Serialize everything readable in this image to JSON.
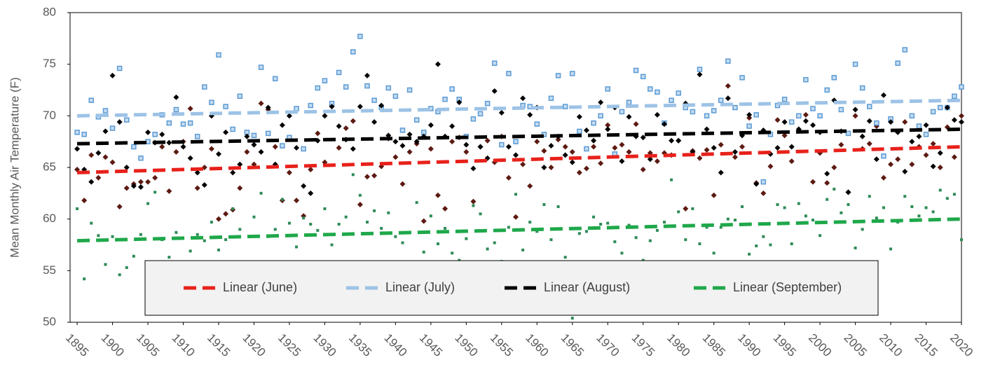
{
  "chart_data": {
    "type": "scatter",
    "y_label": "Mean Monthly Air Temperature (F)",
    "xlim": [
      1894,
      2020
    ],
    "ylim": [
      50,
      80
    ],
    "xticks": [
      1895,
      1900,
      1905,
      1910,
      1915,
      1920,
      1925,
      1930,
      1935,
      1940,
      1945,
      1950,
      1955,
      1960,
      1965,
      1970,
      1975,
      1980,
      1985,
      1990,
      1995,
      2000,
      2005,
      2010,
      2015,
      2020
    ],
    "yticks": [
      50,
      55,
      60,
      65,
      70,
      75,
      80
    ],
    "grid": false,
    "legend": "bottom",
    "x": [
      1895,
      1896,
      1897,
      1898,
      1899,
      1900,
      1901,
      1902,
      1903,
      1904,
      1905,
      1906,
      1907,
      1908,
      1909,
      1910,
      1911,
      1912,
      1913,
      1914,
      1915,
      1916,
      1917,
      1918,
      1919,
      1920,
      1921,
      1922,
      1923,
      1924,
      1925,
      1926,
      1927,
      1928,
      1929,
      1930,
      1931,
      1932,
      1933,
      1934,
      1935,
      1936,
      1937,
      1938,
      1939,
      1940,
      1941,
      1942,
      1943,
      1944,
      1945,
      1946,
      1947,
      1948,
      1949,
      1950,
      1951,
      1952,
      1953,
      1954,
      1955,
      1956,
      1957,
      1958,
      1959,
      1960,
      1961,
      1962,
      1963,
      1964,
      1965,
      1966,
      1967,
      1968,
      1969,
      1970,
      1971,
      1972,
      1973,
      1974,
      1975,
      1976,
      1977,
      1978,
      1979,
      1980,
      1981,
      1982,
      1983,
      1984,
      1985,
      1986,
      1987,
      1988,
      1989,
      1990,
      1991,
      1992,
      1993,
      1994,
      1995,
      1996,
      1997,
      1998,
      1999,
      2000,
      2001,
      2002,
      2003,
      2004,
      2005,
      2006,
      2007,
      2008,
      2009,
      2010,
      2011,
      2012,
      2013,
      2014,
      2015,
      2016,
      2017,
      2018,
      2019,
      2020
    ],
    "series": [
      {
        "color": "#5c1a12",
        "marker": "diamond",
        "values": [
          64.8,
          61.8,
          66.2,
          64.0,
          66.0,
          65.5,
          61.2,
          63.0,
          63.4,
          63.6,
          63.6,
          64.0,
          67.0,
          62.7,
          66.5,
          67.5,
          70.7,
          63.0,
          65.0,
          66.8,
          60.0,
          60.5,
          60.9,
          63.0,
          66.5,
          65.3,
          71.2,
          70.6,
          67.0,
          61.8,
          64.5,
          61.8,
          60.3,
          64.8,
          68.3,
          65.5,
          71.0,
          66.9,
          68.8,
          69.5,
          61.4,
          64.1,
          64.2,
          65.1,
          67.8,
          66.0,
          63.4,
          66.5,
          67.3,
          59.8,
          66.8,
          62.3,
          61.0,
          67.5,
          67.9,
          66.5,
          61.7,
          67.0,
          67.6,
          65.5,
          68.0,
          64.0,
          60.2,
          65.3,
          63.2,
          67.5,
          66.6,
          65.0,
          67.7,
          67.0,
          66.5,
          64.5,
          64.9,
          67.0,
          65.4,
          69.1,
          66.9,
          67.2,
          66.5,
          69.2,
          64.8,
          66.4,
          65.6,
          66.4,
          66.2,
          67.6,
          61.0,
          66.6,
          65.9,
          66.7,
          62.3,
          67.2,
          72.9,
          66.0,
          67.0,
          69.8,
          63.5,
          62.5,
          65.1,
          69.6,
          68.1,
          65.6,
          68.7,
          70.1,
          63.6,
          66.4,
          63.5,
          65.0,
          67.2,
          62.6,
          70.0,
          66.8,
          67.3,
          69.0,
          64.0,
          65.3,
          65.8,
          69.4,
          65.3,
          67.0,
          66.2,
          67.3,
          65.0,
          68.9,
          66.0,
          70.0
        ]
      },
      {
        "color": "#5b9bd5",
        "marker": "square",
        "values": [
          68.4,
          68.2,
          71.5,
          69.9,
          70.5,
          68.8,
          74.6,
          69.6,
          67.0,
          65.9,
          67.5,
          68.2,
          70.1,
          69.3,
          70.6,
          69.2,
          69.3,
          68.0,
          72.8,
          71.3,
          75.9,
          70.9,
          68.7,
          71.9,
          68.4,
          68.1,
          74.7,
          68.3,
          73.6,
          67.1,
          67.9,
          70.7,
          66.8,
          71.0,
          72.7,
          73.4,
          71.2,
          74.2,
          72.8,
          76.2,
          77.7,
          72.9,
          71.5,
          70.8,
          72.7,
          71.9,
          68.6,
          72.5,
          69.6,
          68.4,
          70.7,
          70.4,
          71.6,
          72.6,
          71.6,
          68.0,
          69.7,
          70.2,
          71.2,
          75.1,
          67.2,
          74.1,
          67.5,
          71.0,
          70.9,
          69.2,
          68.2,
          71.7,
          73.9,
          70.9,
          74.1,
          68.5,
          66.8,
          69.3,
          70.0,
          72.6,
          66.3,
          70.4,
          71.3,
          74.4,
          73.8,
          72.6,
          72.3,
          69.3,
          71.5,
          72.2,
          70.8,
          70.4,
          74.5,
          70.0,
          70.5,
          71.5,
          75.3,
          70.8,
          73.7,
          69.0,
          70.1,
          63.6,
          68.2,
          71.0,
          71.6,
          69.4,
          70.0,
          73.5,
          70.7,
          70.0,
          72.5,
          73.7,
          70.6,
          68.3,
          75.0,
          72.7,
          70.9,
          69.3,
          66.1,
          69.7,
          75.1,
          76.4,
          70.0,
          69.0,
          68.2,
          70.4,
          70.8,
          70.8,
          71.9,
          72.8
        ]
      },
      {
        "color": "#000000",
        "marker": "diamond",
        "values": [
          66.8,
          64.8,
          63.6,
          66.4,
          68.5,
          73.9,
          69.4,
          65.0,
          63.2,
          63.1,
          68.4,
          67.4,
          68.2,
          67.4,
          71.8,
          67.0,
          65.9,
          64.5,
          63.3,
          70.0,
          66.3,
          68.4,
          64.5,
          65.3,
          68.0,
          67.2,
          66.5,
          70.8,
          65.3,
          69.1,
          70.0,
          66.9,
          63.2,
          62.5,
          67.6,
          70.0,
          70.9,
          69.0,
          67.7,
          66.8,
          70.9,
          73.9,
          69.4,
          71.0,
          68.1,
          67.5,
          67.1,
          68.2,
          67.5,
          68.0,
          69.1,
          75.0,
          68.0,
          69.0,
          71.3,
          67.2,
          64.9,
          67.0,
          65.9,
          72.4,
          70.3,
          67.0,
          66.2,
          71.7,
          70.1,
          70.8,
          65.0,
          67.1,
          68.0,
          66.2,
          65.5,
          69.9,
          68.6,
          67.6,
          71.3,
          68.7,
          70.8,
          65.6,
          69.9,
          68.0,
          67.9,
          65.8,
          70.1,
          69.2,
          67.6,
          67.6,
          71.2,
          66.5,
          74.0,
          68.7,
          66.9,
          64.5,
          71.7,
          66.5,
          68.1,
          70.1,
          63.4,
          68.6,
          66.3,
          66.9,
          69.4,
          67.0,
          68.7,
          69.5,
          69.1,
          68.4,
          64.4,
          71.5,
          68.5,
          62.6,
          70.6,
          68.0,
          69.5,
          65.8,
          72.0,
          69.4,
          68.4,
          64.6,
          67.5,
          68.0,
          69.1,
          65.1,
          66.4,
          70.8,
          69.6,
          69.4
        ]
      },
      {
        "color": "#2e8b57",
        "marker": "small-square",
        "values": [
          61.0,
          54.2,
          59.6,
          58.4,
          55.6,
          58.3,
          54.6,
          55.3,
          56.4,
          58.5,
          61.5,
          62.6,
          58.0,
          56.3,
          58.7,
          55.3,
          56.9,
          58.5,
          57.9,
          59.7,
          57.0,
          58.0,
          61.0,
          59.0,
          55.5,
          60.2,
          62.5,
          58.3,
          59.0,
          61.9,
          59.6,
          57.3,
          60.1,
          59.5,
          58.9,
          61.0,
          57.5,
          59.5,
          60.2,
          64.3,
          62.3,
          59.7,
          60.8,
          59.1,
          60.6,
          58.3,
          57.7,
          55.6,
          61.6,
          56.8,
          60.3,
          57.6,
          59.1,
          56.7,
          56.0,
          58.1,
          61.3,
          60.5,
          57.1,
          57.7,
          55.9,
          59.2,
          62.4,
          57.0,
          59.7,
          58.8,
          61.4,
          58.0,
          61.2,
          56.3,
          50.4,
          58.6,
          58.8,
          60.2,
          59.5,
          59.6,
          57.8,
          56.7,
          59.4,
          58.2,
          56.0,
          57.9,
          58.9,
          59.7,
          63.8,
          60.7,
          58.0,
          61.0,
          57.6,
          59.2,
          56.7,
          59.2,
          60.0,
          59.9,
          61.2,
          56.6,
          57.4,
          58.3,
          57.5,
          61.4,
          61.1,
          57.6,
          61.5,
          60.3,
          59.9,
          58.4,
          61.9,
          62.9,
          60.6,
          61.4,
          57.2,
          59.0,
          62.2,
          60.1,
          61.1,
          57.1,
          59.7,
          62.2,
          61.2,
          60.3,
          61.1,
          60.7,
          62.8,
          62.0,
          62.4,
          58.0
        ]
      },
      {
        "name": "Linear (June)",
        "color": "#e8211b",
        "kind": "trend",
        "x": [
          1895,
          2020
        ],
        "values": [
          64.5,
          67.0
        ]
      },
      {
        "name": "Linear (July)",
        "color": "#9dc3e6",
        "kind": "trend",
        "x": [
          1895,
          2020
        ],
        "values": [
          70.0,
          71.5
        ]
      },
      {
        "name": "Linear (August)",
        "color": "#000000",
        "kind": "trend",
        "x": [
          1895,
          2020
        ],
        "values": [
          67.3,
          68.7
        ]
      },
      {
        "name": "Linear (September)",
        "color": "#1fa84a",
        "kind": "trend",
        "x": [
          1895,
          2020
        ],
        "values": [
          57.9,
          60.0
        ]
      }
    ]
  }
}
